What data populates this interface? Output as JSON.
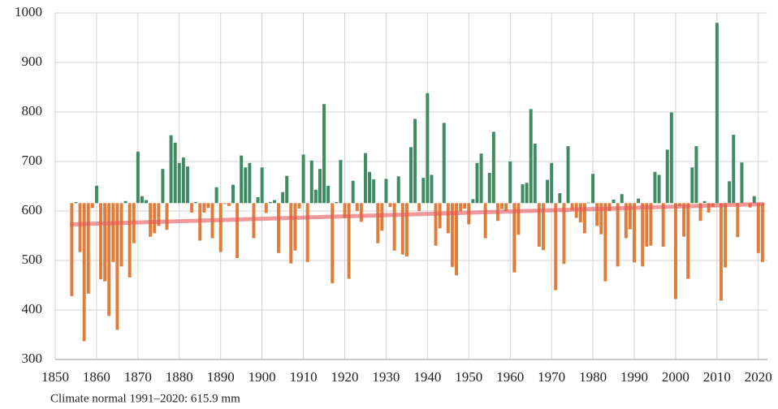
{
  "chart_data": {
    "type": "bar",
    "footnote": "Climate normal 1991–2020: 615.9 mm",
    "baseline": 615.9,
    "color_above": "#3f8c62",
    "color_below": "#e07d3a",
    "grid": true,
    "xlim": [
      1850,
      2022.2
    ],
    "xticks": [
      1850,
      1860,
      1870,
      1880,
      1890,
      1900,
      1910,
      1920,
      1930,
      1940,
      1950,
      1960,
      1970,
      1980,
      1990,
      2000,
      2010,
      2020
    ],
    "ylim": [
      300,
      1000
    ],
    "yticks": [
      300,
      400,
      500,
      600,
      700,
      800,
      900,
      1000
    ],
    "x": [
      1854,
      1855,
      1856,
      1857,
      1858,
      1859,
      1860,
      1861,
      1862,
      1863,
      1864,
      1865,
      1866,
      1867,
      1868,
      1869,
      1870,
      1871,
      1872,
      1873,
      1874,
      1875,
      1876,
      1877,
      1878,
      1879,
      1880,
      1881,
      1882,
      1883,
      1884,
      1885,
      1886,
      1887,
      1888,
      1889,
      1890,
      1891,
      1892,
      1893,
      1894,
      1895,
      1896,
      1897,
      1898,
      1899,
      1900,
      1901,
      1902,
      1903,
      1904,
      1905,
      1906,
      1907,
      1908,
      1909,
      1910,
      1911,
      1912,
      1913,
      1914,
      1915,
      1916,
      1917,
      1918,
      1919,
      1920,
      1921,
      1922,
      1923,
      1924,
      1925,
      1926,
      1927,
      1928,
      1929,
      1930,
      1931,
      1932,
      1933,
      1934,
      1935,
      1936,
      1937,
      1938,
      1939,
      1940,
      1941,
      1942,
      1943,
      1944,
      1945,
      1946,
      1947,
      1948,
      1949,
      1950,
      1951,
      1952,
      1953,
      1954,
      1955,
      1956,
      1957,
      1958,
      1959,
      1960,
      1961,
      1962,
      1963,
      1964,
      1965,
      1966,
      1967,
      1968,
      1969,
      1970,
      1971,
      1972,
      1973,
      1974,
      1975,
      1976,
      1977,
      1978,
      1979,
      1980,
      1981,
      1982,
      1983,
      1984,
      1985,
      1986,
      1987,
      1988,
      1989,
      1990,
      1991,
      1992,
      1993,
      1994,
      1995,
      1996,
      1997,
      1998,
      1999,
      2000,
      2001,
      2002,
      2003,
      2004,
      2005,
      2006,
      2007,
      2008,
      2009,
      2010,
      2011,
      2012,
      2013,
      2014,
      2015,
      2016,
      2017,
      2018,
      2019,
      2020,
      2021
    ],
    "values": [
      428,
      618,
      517,
      337,
      433,
      606,
      651,
      462,
      458,
      388,
      497,
      360,
      488,
      620,
      466,
      535,
      720,
      630,
      622,
      548,
      555,
      570,
      685,
      562,
      753,
      738,
      697,
      708,
      690,
      597,
      618,
      540,
      597,
      606,
      545,
      648,
      517,
      614,
      610,
      653,
      505,
      712,
      688,
      697,
      545,
      628,
      688,
      596,
      618,
      622,
      515,
      638,
      671,
      494,
      520,
      605,
      714,
      497,
      702,
      643,
      685,
      816,
      651,
      454,
      618,
      703,
      586,
      463,
      661,
      600,
      578,
      717,
      679,
      664,
      535,
      560,
      665,
      608,
      520,
      670,
      512,
      508,
      729,
      786,
      600,
      667,
      838,
      673,
      530,
      565,
      778,
      555,
      487,
      470,
      600,
      605,
      573,
      624,
      697,
      716,
      545,
      677,
      760,
      580,
      604,
      600,
      700,
      476,
      552,
      654,
      657,
      806,
      736,
      528,
      521,
      663,
      697,
      440,
      636,
      493,
      731,
      602,
      586,
      577,
      555,
      617,
      675,
      570,
      553,
      458,
      600,
      623,
      488,
      634,
      545,
      563,
      496,
      625,
      488,
      528,
      530,
      679,
      673,
      528,
      724,
      799,
      422,
      610,
      548,
      463,
      688,
      731,
      580,
      620,
      597,
      608,
      980,
      419,
      486,
      660,
      754,
      547,
      698,
      616,
      607,
      630,
      515,
      497
    ],
    "trend": {
      "x": [
        1854,
        2021
      ],
      "values": [
        573,
        614
      ],
      "color": "#e8575a"
    }
  }
}
